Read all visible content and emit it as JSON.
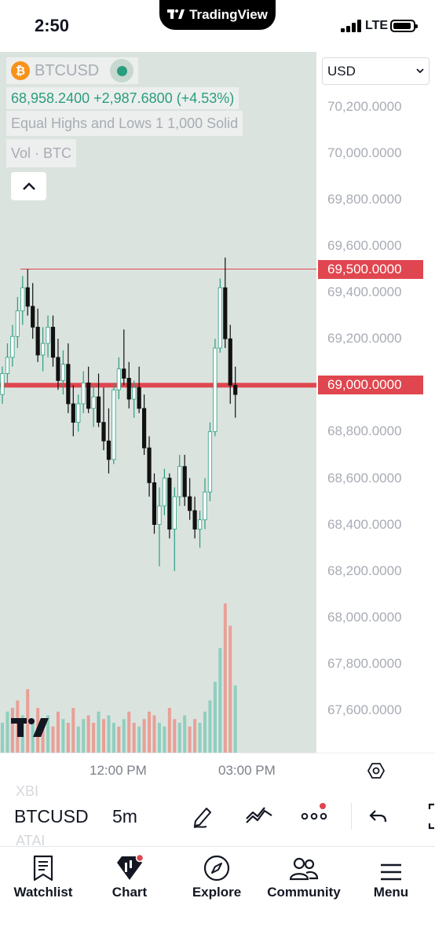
{
  "status_bar": {
    "time": "2:50",
    "app_name": "TradingView",
    "network": "LTE"
  },
  "legend": {
    "symbol": "BTCUSD",
    "coin_badge": "₿",
    "price_line": "68,958.2400  +2,987.6800 (+4.53%)",
    "chart_style": "Equal Highs and Lows 1  1,000  Solid",
    "volume_label": "Vol · BTC"
  },
  "currency_select": {
    "value": "USD"
  },
  "price_scale": {
    "labels": [
      "70,200.0000",
      "70,000.0000",
      "69,800.0000",
      "69,600.0000",
      "69,400.0000",
      "69,200.0000",
      "68,800.0000",
      "68,600.0000",
      "68,400.0000",
      "68,200.0000",
      "68,000.0000",
      "67,800.0000",
      "67,600.0000"
    ],
    "tag_upper": "69,500.0000",
    "tag_lower": "69,000.0000"
  },
  "time_axis": {
    "labels": [
      "12:00 PM",
      "03:00 PM"
    ]
  },
  "toolbar": {
    "ghost_above": "XBI",
    "symbol": "BTCUSD",
    "ghost_below": "ATAI",
    "interval": "5m"
  },
  "tab_bar": {
    "items": [
      {
        "label": "Watchlist",
        "icon": "watchlist-icon"
      },
      {
        "label": "Chart",
        "icon": "chart-icon"
      },
      {
        "label": "Explore",
        "icon": "compass-icon"
      },
      {
        "label": "Community",
        "icon": "community-icon"
      },
      {
        "label": "Menu",
        "icon": "menu-icon"
      }
    ]
  },
  "colors": {
    "up": "#2a9d7f",
    "down": "#111111",
    "alert_line": "#e0464f",
    "volume_up": "#8fcfbf",
    "volume_down": "#e8a096",
    "chart_bg": "#dbe3df"
  },
  "chart_data": {
    "type": "candlestick",
    "symbol": "BTCUSD",
    "interval": "5m",
    "currency": "USD",
    "y_ticks": [
      70200,
      70000,
      69800,
      69600,
      69400,
      69200,
      68800,
      68600,
      68400,
      68200,
      68000,
      67800,
      67600
    ],
    "ylim": [
      67500,
      70400
    ],
    "horizontal_lines": [
      69500,
      69000
    ],
    "x_tick_labels": [
      "12:00 PM",
      "03:00 PM"
    ],
    "candles": [
      [
        68960,
        69080,
        68920,
        69050
      ],
      [
        69050,
        69180,
        69000,
        69120
      ],
      [
        69120,
        69260,
        69080,
        69210
      ],
      [
        69210,
        69380,
        69160,
        69320
      ],
      [
        69320,
        69470,
        69260,
        69420
      ],
      [
        69420,
        69500,
        69300,
        69340
      ],
      [
        69340,
        69440,
        69200,
        69250
      ],
      [
        69250,
        69330,
        69100,
        69130
      ],
      [
        69130,
        69250,
        69060,
        69180
      ],
      [
        69180,
        69300,
        69120,
        69250
      ],
      [
        69250,
        69300,
        69080,
        69120
      ],
      [
        69120,
        69200,
        68980,
        69020
      ],
      [
        69020,
        69150,
        68960,
        69090
      ],
      [
        69090,
        69180,
        68880,
        68920
      ],
      [
        68920,
        69000,
        68780,
        68840
      ],
      [
        68840,
        68960,
        68800,
        68920
      ],
      [
        68920,
        69060,
        68880,
        69010
      ],
      [
        69010,
        69080,
        68880,
        68900
      ],
      [
        68900,
        69000,
        68820,
        68950
      ],
      [
        68950,
        69050,
        68820,
        68840
      ],
      [
        68840,
        68990,
        68720,
        68760
      ],
      [
        68760,
        68900,
        68620,
        68680
      ],
      [
        68680,
        69010,
        68660,
        68980
      ],
      [
        68980,
        69120,
        68940,
        69070
      ],
      [
        69070,
        69240,
        69000,
        69030
      ],
      [
        69030,
        69100,
        68900,
        68940
      ],
      [
        68940,
        69020,
        68860,
        68990
      ],
      [
        68990,
        69080,
        68880,
        68900
      ],
      [
        68900,
        68960,
        68700,
        68730
      ],
      [
        68730,
        68780,
        68520,
        68580
      ],
      [
        68580,
        68620,
        68360,
        68400
      ],
      [
        68400,
        68560,
        68220,
        68480
      ],
      [
        68480,
        68640,
        68440,
        68600
      ],
      [
        68600,
        68620,
        68340,
        68380
      ],
      [
        68380,
        68560,
        68200,
        68520
      ],
      [
        68520,
        68700,
        68480,
        68650
      ],
      [
        68650,
        68700,
        68480,
        68520
      ],
      [
        68520,
        68600,
        68420,
        68460
      ],
      [
        68460,
        68520,
        68340,
        68380
      ],
      [
        68380,
        68460,
        68300,
        68420
      ],
      [
        68420,
        68600,
        68380,
        68540
      ],
      [
        68540,
        68840,
        68500,
        68800
      ],
      [
        68800,
        69200,
        68780,
        69160
      ],
      [
        69160,
        69460,
        69140,
        69420
      ],
      [
        69420,
        69550,
        69160,
        69200
      ],
      [
        69200,
        69260,
        68920,
        69000
      ],
      [
        69000,
        69080,
        68860,
        68960
      ]
    ],
    "volume": [
      [
        40,
        1
      ],
      [
        55,
        1
      ],
      [
        60,
        0
      ],
      [
        70,
        0
      ],
      [
        50,
        1
      ],
      [
        85,
        0
      ],
      [
        45,
        1
      ],
      [
        60,
        0
      ],
      [
        40,
        0
      ],
      [
        50,
        1
      ],
      [
        35,
        0
      ],
      [
        55,
        0
      ],
      [
        45,
        1
      ],
      [
        40,
        0
      ],
      [
        60,
        0
      ],
      [
        35,
        1
      ],
      [
        45,
        1
      ],
      [
        50,
        0
      ],
      [
        40,
        0
      ],
      [
        55,
        1
      ],
      [
        45,
        0
      ],
      [
        50,
        1
      ],
      [
        40,
        1
      ],
      [
        35,
        0
      ],
      [
        45,
        1
      ],
      [
        55,
        0
      ],
      [
        40,
        0
      ],
      [
        35,
        1
      ],
      [
        45,
        0
      ],
      [
        55,
        0
      ],
      [
        50,
        0
      ],
      [
        40,
        1
      ],
      [
        35,
        1
      ],
      [
        60,
        0
      ],
      [
        45,
        0
      ],
      [
        40,
        1
      ],
      [
        50,
        1
      ],
      [
        35,
        0
      ],
      [
        45,
        0
      ],
      [
        40,
        1
      ],
      [
        55,
        1
      ],
      [
        70,
        1
      ],
      [
        95,
        1
      ],
      [
        140,
        1
      ],
      [
        200,
        0
      ],
      [
        170,
        0
      ],
      [
        90,
        1
      ]
    ]
  }
}
